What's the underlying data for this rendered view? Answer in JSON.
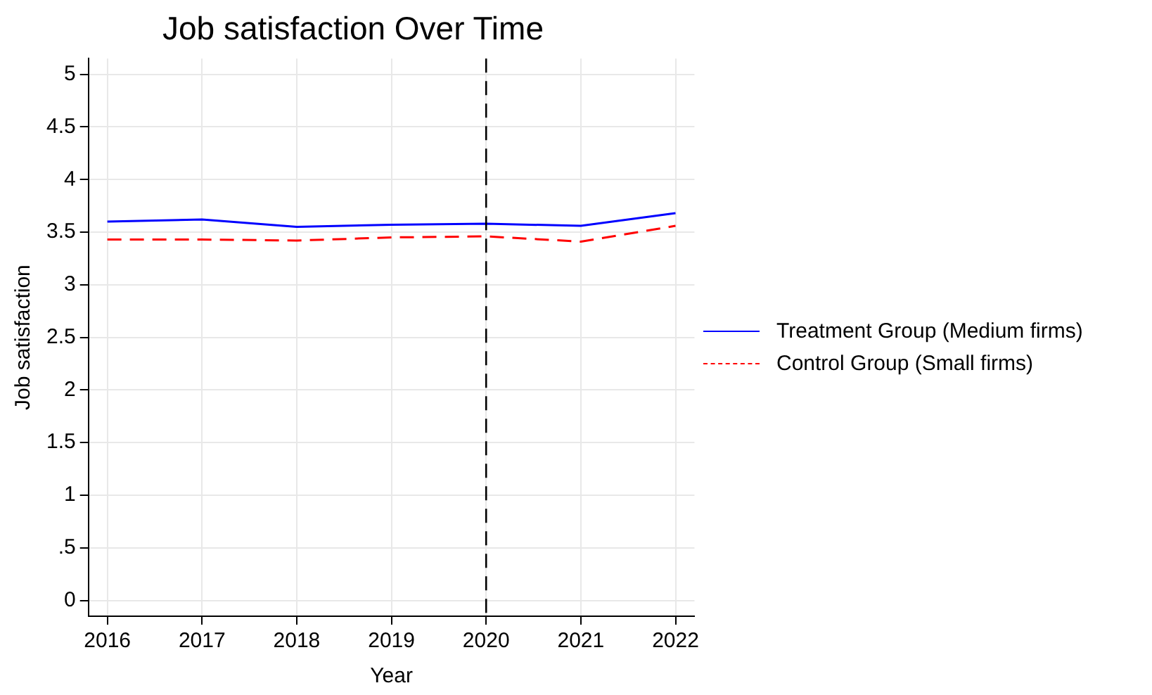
{
  "chart_data": {
    "type": "line",
    "title": "Job satisfaction Over Time",
    "xlabel": "Year",
    "ylabel": "Job satisfaction",
    "x": [
      2016,
      2017,
      2018,
      2019,
      2020,
      2021,
      2022
    ],
    "series": [
      {
        "name": "Treatment Group (Medium firms)",
        "color": "#0000ff",
        "values": [
          3.6,
          3.62,
          3.55,
          3.57,
          3.58,
          3.56,
          3.68
        ],
        "line_style": "solid"
      },
      {
        "name": "Control Group (Small firms)",
        "color": "#ff0000",
        "values": [
          3.43,
          3.43,
          3.42,
          3.45,
          3.46,
          3.41,
          3.56
        ],
        "line_style": "dashed"
      }
    ],
    "xlim": [
      2015.8,
      2022.2
    ],
    "xticks": [
      2016,
      2017,
      2018,
      2019,
      2020,
      2021,
      2022
    ],
    "ylim": [
      -0.15,
      5.15
    ],
    "yticks": [
      0,
      {
        "value": 0.5,
        "label": ".5"
      },
      1,
      1.5,
      2,
      2.5,
      3,
      3.5,
      4,
      4.5,
      5
    ],
    "ref_lines": [
      {
        "axis": "x",
        "value": 2020,
        "color": "#000000",
        "line_style": "dashed"
      }
    ],
    "grid": true,
    "legend": "right",
    "marker": "none"
  }
}
